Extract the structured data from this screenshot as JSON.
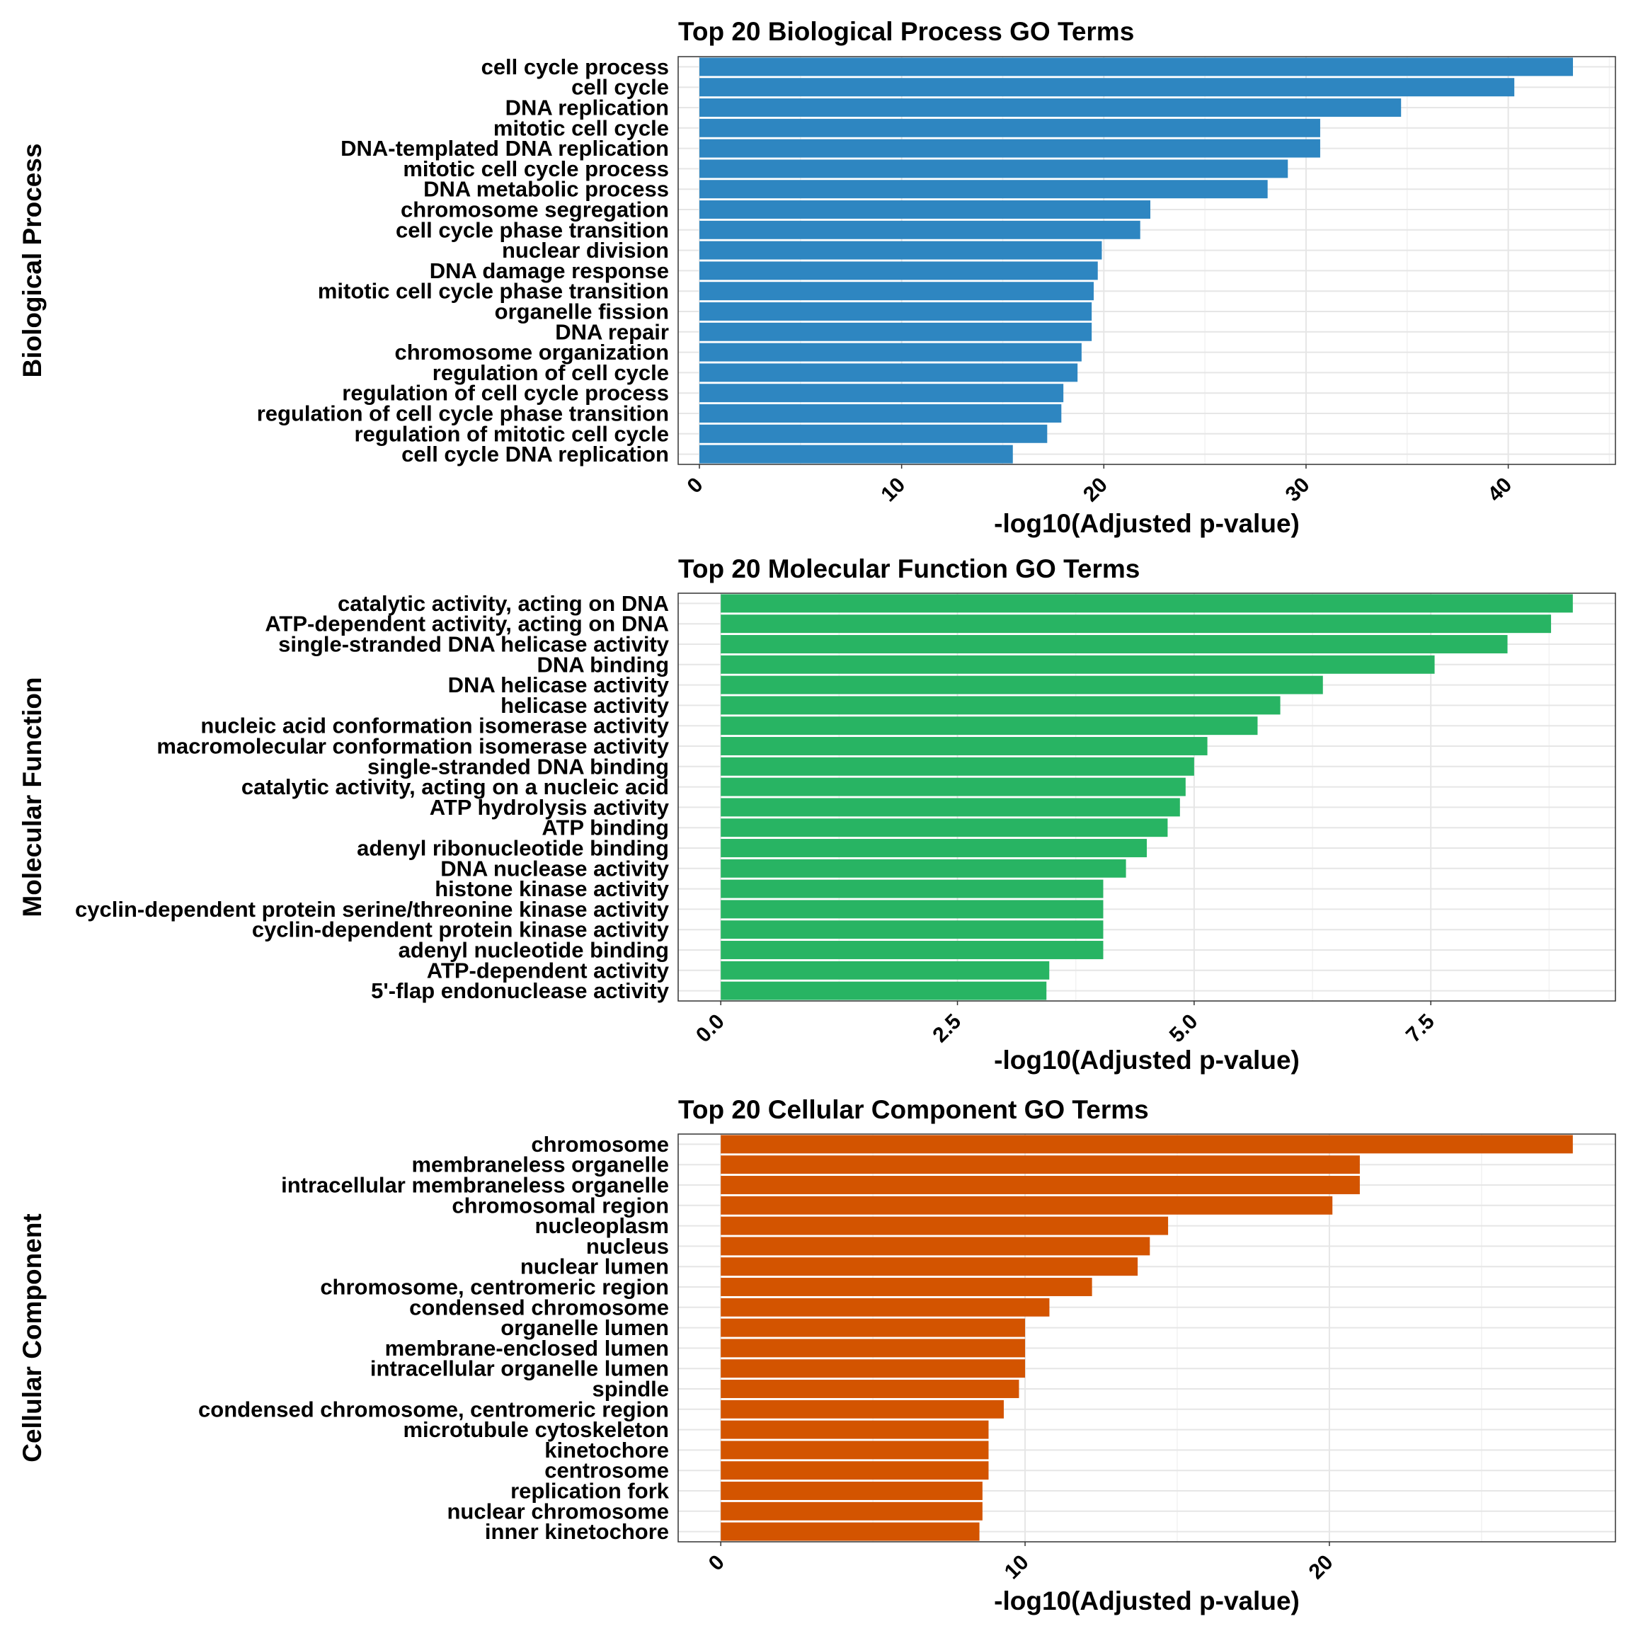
{
  "chart_data": [
    {
      "type": "bar",
      "orientation": "horizontal",
      "title": "Top 20 Biological Process GO Terms",
      "xlabel": "-log10(Adjusted p-value)",
      "ylabel": "Biological Process",
      "xlim": [
        -1.05,
        45.3
      ],
      "xticks": [
        0,
        10,
        20,
        30,
        40
      ],
      "xtick_labels": [
        "0",
        "10",
        "20",
        "30",
        "40"
      ],
      "grid": true,
      "color": "#2e86c1",
      "categories": [
        "cell cycle process",
        "cell cycle",
        "DNA replication",
        "mitotic cell cycle",
        "DNA-templated DNA replication",
        "mitotic cell cycle process",
        "DNA metabolic process",
        "chromosome segregation",
        "cell cycle phase transition",
        "nuclear division",
        "DNA damage response",
        "mitotic cell cycle phase transition",
        "organelle fission",
        "DNA repair",
        "chromosome organization",
        "regulation of cell cycle",
        "regulation of cell cycle process",
        "regulation of cell cycle phase transition",
        "regulation of mitotic cell cycle",
        "cell cycle DNA replication"
      ],
      "values": [
        43.2,
        40.3,
        34.7,
        30.7,
        30.7,
        29.1,
        28.1,
        22.3,
        21.8,
        19.9,
        19.7,
        19.5,
        19.4,
        19.4,
        18.9,
        18.7,
        18.0,
        17.9,
        17.2,
        15.5
      ]
    },
    {
      "type": "bar",
      "orientation": "horizontal",
      "title": "Top 20 Molecular Function GO Terms",
      "xlabel": "-log10(Adjusted p-value)",
      "ylabel": "Molecular Function",
      "xlim": [
        -0.45,
        9.45
      ],
      "xticks": [
        0,
        2.5,
        5,
        7.5
      ],
      "xtick_labels": [
        "0.0",
        "2.5",
        "5.0",
        "7.5"
      ],
      "grid": true,
      "color": "#28b463",
      "categories": [
        "catalytic activity, acting on DNA",
        "ATP-dependent activity, acting on DNA",
        "single-stranded DNA helicase activity",
        "DNA binding",
        "DNA helicase activity",
        "helicase activity",
        "nucleic acid conformation isomerase activity",
        "macromolecular conformation isomerase activity",
        "single-stranded DNA binding",
        "catalytic activity, acting on a nucleic acid",
        "ATP hydrolysis activity",
        "ATP binding",
        "adenyl ribonucleotide binding",
        "DNA nuclease activity",
        "histone kinase activity",
        "cyclin-dependent protein serine/threonine kinase activity",
        "cyclin-dependent protein kinase activity",
        "adenyl nucleotide binding",
        "ATP-dependent activity",
        "5'-flap endonuclease activity"
      ],
      "values": [
        9.0,
        8.77,
        8.31,
        7.54,
        6.36,
        5.91,
        5.67,
        5.14,
        5.0,
        4.91,
        4.85,
        4.72,
        4.5,
        4.28,
        4.04,
        4.04,
        4.04,
        4.04,
        3.47,
        3.44
      ]
    },
    {
      "type": "bar",
      "orientation": "horizontal",
      "title": "Top 20 Cellular Component GO Terms",
      "xlabel": "-log10(Adjusted p-value)",
      "ylabel": "Cellular Component",
      "xlim": [
        -1.4,
        29.4
      ],
      "xticks": [
        0,
        10,
        20
      ],
      "xtick_labels": [
        "0",
        "10",
        "20"
      ],
      "grid": true,
      "color": "#d35400",
      "categories": [
        "chromosome",
        "membraneless organelle",
        "intracellular membraneless organelle",
        "chromosomal region",
        "nucleoplasm",
        "nucleus",
        "nuclear lumen",
        "chromosome, centromeric region",
        "condensed chromosome",
        "organelle lumen",
        "membrane-enclosed lumen",
        "intracellular organelle lumen",
        "spindle",
        "condensed chromosome, centromeric region",
        "microtubule cytoskeleton",
        "kinetochore",
        "centrosome",
        "replication fork",
        "nuclear chromosome",
        "inner kinetochore"
      ],
      "values": [
        28.0,
        21.0,
        21.0,
        20.1,
        14.7,
        14.1,
        13.7,
        12.2,
        10.8,
        10.0,
        10.0,
        10.0,
        9.8,
        9.3,
        8.8,
        8.8,
        8.8,
        8.6,
        8.6,
        8.5
      ]
    }
  ]
}
